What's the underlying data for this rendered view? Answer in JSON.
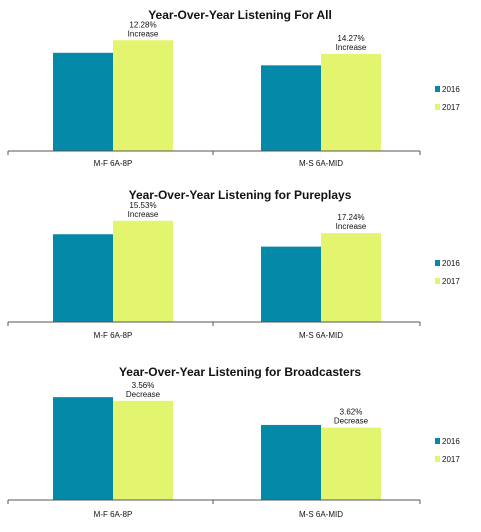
{
  "colors": {
    "2016": "#0589a8",
    "2017": "#e3f56e",
    "axis": "#555555"
  },
  "chart_data": [
    {
      "type": "bar",
      "title": "Year-Over-Year Listening For All",
      "categories": [
        "M-F 6A-8P",
        "M-S 6A-MID"
      ],
      "series": [
        {
          "name": "2016",
          "values": [
            94,
            82
          ]
        },
        {
          "name": "2017",
          "values": [
            106,
            93
          ]
        }
      ],
      "annotations": [
        {
          "category": "M-F 6A-8P",
          "line1": "12.28%",
          "line2": "Increase"
        },
        {
          "category": "M-S 6A-MID",
          "line1": "14.27%",
          "line2": "Increase"
        }
      ],
      "ylim": [
        0,
        112
      ],
      "legend": "right",
      "grid": false
    },
    {
      "type": "bar",
      "title": "Year-Over-Year Listening for Pureplays",
      "categories": [
        "M-F 6A-8P",
        "M-S 6A-MID"
      ],
      "series": [
        {
          "name": "2016",
          "values": [
            78,
            67
          ]
        },
        {
          "name": "2017",
          "values": [
            90,
            79
          ]
        }
      ],
      "annotations": [
        {
          "category": "M-F 6A-8P",
          "line1": "15.53%",
          "line2": "Increase"
        },
        {
          "category": "M-S 6A-MID",
          "line1": "17.24%",
          "line2": "Increase"
        }
      ],
      "ylim": [
        0,
        96
      ],
      "legend": "right",
      "grid": false
    },
    {
      "type": "bar",
      "title": "Year-Over-Year Listening for Broadcasters",
      "categories": [
        "M-F 6A-8P",
        "M-S 6A-MID"
      ],
      "series": [
        {
          "name": "2016",
          "values": [
            100,
            73
          ]
        },
        {
          "name": "2017",
          "values": [
            96.44,
            70.36
          ]
        }
      ],
      "annotations": [
        {
          "category": "M-F 6A-8P",
          "line1": "3.56%",
          "line2": "Decrease"
        },
        {
          "category": "M-S 6A-MID",
          "line1": "3.62%",
          "line2": "Decrease"
        }
      ],
      "ylim": [
        0,
        106
      ],
      "legend": "right",
      "grid": false
    }
  ]
}
